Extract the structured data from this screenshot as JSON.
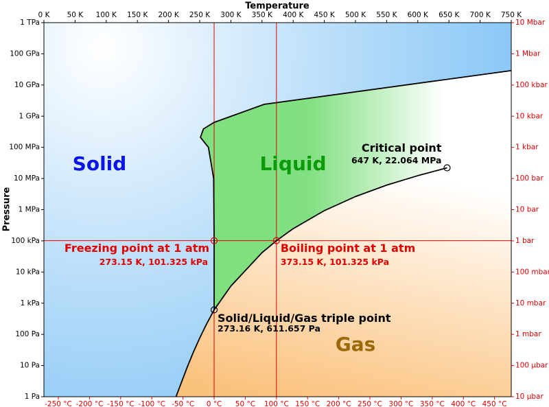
{
  "chart_data": {
    "type": "phase",
    "title": "Temperature",
    "y_label": "Pressure",
    "log": true,
    "xlim": [
      0,
      750
    ],
    "xticks": [
      {
        "value": 0,
        "label": "0 K"
      },
      {
        "value": 50,
        "label": "50 K"
      },
      {
        "value": 100,
        "label": "100 K"
      },
      {
        "value": 150,
        "label": "150 K"
      },
      {
        "value": 200,
        "label": "200 K"
      },
      {
        "value": 250,
        "label": "250 K"
      },
      {
        "value": 300,
        "label": "300 K"
      },
      {
        "value": 350,
        "label": "350 K"
      },
      {
        "value": 400,
        "label": "400 K"
      },
      {
        "value": 450,
        "label": "450 K"
      },
      {
        "value": 500,
        "label": "500 K"
      },
      {
        "value": 550,
        "label": "550 K"
      },
      {
        "value": 600,
        "label": "600 K"
      },
      {
        "value": 650,
        "label": "650 K"
      },
      {
        "value": 700,
        "label": "700 K"
      },
      {
        "value": 750,
        "label": "750 K"
      }
    ],
    "x2lim": [
      -273.15,
      476.85
    ],
    "x2ticks": [
      {
        "value": -250,
        "label": "-250 °C"
      },
      {
        "value": -200,
        "label": "-200 °C"
      },
      {
        "value": -150,
        "label": "-150 °C"
      },
      {
        "value": -100,
        "label": "-100 °C"
      },
      {
        "value": -50,
        "label": "-50 °C"
      },
      {
        "value": 0,
        "label": "0 °C"
      },
      {
        "value": 50,
        "label": "50 °C"
      },
      {
        "value": 100,
        "label": "100 °C"
      },
      {
        "value": 150,
        "label": "150 °C"
      },
      {
        "value": 200,
        "label": "200 °C"
      },
      {
        "value": 250,
        "label": "250 °C"
      },
      {
        "value": 300,
        "label": "300 °C"
      },
      {
        "value": 350,
        "label": "350 °C"
      },
      {
        "value": 400,
        "label": "400 °C"
      },
      {
        "value": 450,
        "label": "450 °C"
      }
    ],
    "ylim": [
      1,
      1000000000000
    ],
    "yticks": [
      {
        "value": 1,
        "label": "1 Pa"
      },
      {
        "value": 10,
        "label": "10 Pa"
      },
      {
        "value": 100,
        "label": "100 Pa"
      },
      {
        "value": 1000,
        "label": "1 kPa"
      },
      {
        "value": 10000,
        "label": "10 kPa"
      },
      {
        "value": 100000,
        "label": "100 kPa"
      },
      {
        "value": 1000000,
        "label": "1 MPa"
      },
      {
        "value": 10000000,
        "label": "10 MPa"
      },
      {
        "value": 100000000,
        "label": "100 MPa"
      },
      {
        "value": 1000000000,
        "label": "1 GPa"
      },
      {
        "value": 10000000000,
        "label": "10 GPa"
      },
      {
        "value": 100000000000,
        "label": "100 GPa"
      },
      {
        "value": 1000000000000,
        "label": "1 TPa"
      }
    ],
    "y2lim": [
      1e-05,
      10000000
    ],
    "y2ticks": [
      {
        "value": 1e-05,
        "label": "10 µbar"
      },
      {
        "value": 0.0001,
        "label": "100 µbar"
      },
      {
        "value": 0.001,
        "label": "1 mbar"
      },
      {
        "value": 0.01,
        "label": "10 mbar"
      },
      {
        "value": 0.1,
        "label": "100 mbar"
      },
      {
        "value": 1,
        "label": "1 bar"
      },
      {
        "value": 10,
        "label": "10 bar"
      },
      {
        "value": 100,
        "label": "100 bar"
      },
      {
        "value": 1000,
        "label": "1 kbar"
      },
      {
        "value": 10000,
        "label": "10 kbar"
      },
      {
        "value": 100000,
        "label": "100 kbar"
      },
      {
        "value": 1000000,
        "label": "1 Mbar"
      },
      {
        "value": 10000000,
        "label": "10 Mbar"
      }
    ],
    "y2_color": "#e00000",
    "line_color": "#000000",
    "ref_color": "#e00000",
    "boundaries": [
      {
        "x": [
          273.16,
          273.15,
          272.4,
          264,
          251.2,
          256,
          273,
          353.5,
          750
        ],
        "y": [
          611.657,
          101325,
          10000000,
          100000000,
          210000000,
          390000000,
          630000000,
          2400000000,
          29000000000
        ]
      },
      {
        "x": [
          212,
          220,
          230,
          240,
          250,
          260,
          273.16
        ],
        "y": [
          1,
          2.65,
          8.9,
          27.3,
          76,
          195.8,
          611.657
        ]
      },
      {
        "x": [
          273.16,
          300,
          350,
          373.15,
          400,
          450,
          500,
          550,
          600,
          647
        ],
        "y": [
          611.657,
          3537,
          41680,
          101325,
          245770,
          932200,
          2639000,
          6117000,
          12344000,
          22064000
        ]
      }
    ],
    "points": [
      {
        "x": 273.15,
        "y": 101325,
        "label": "Freezing point at 1 atm",
        "sublabel": "273.15 K, 101.325 kPa",
        "color": "#e00000"
      },
      {
        "x": 373.15,
        "y": 101325,
        "label": "Boiling point at 1 atm",
        "sublabel": "373.15 K, 101.325 kPa",
        "color": "#e00000"
      },
      {
        "x": 273.16,
        "y": 611.657,
        "label": "Solid/Liquid/Gas triple point",
        "sublabel": "273.16 K, 611.657 Pa",
        "color": "#000000"
      },
      {
        "x": 647,
        "y": 22064000,
        "label": "Critical point",
        "sublabel": "647 K, 22.064 MPa",
        "color": "#000000"
      }
    ],
    "regions": [
      {
        "label": "Solid",
        "color": "#0a14e6"
      },
      {
        "label": "Liquid",
        "color": "#0a9a0a"
      },
      {
        "label": "Gas",
        "color": "#9a6a0a"
      }
    ]
  }
}
